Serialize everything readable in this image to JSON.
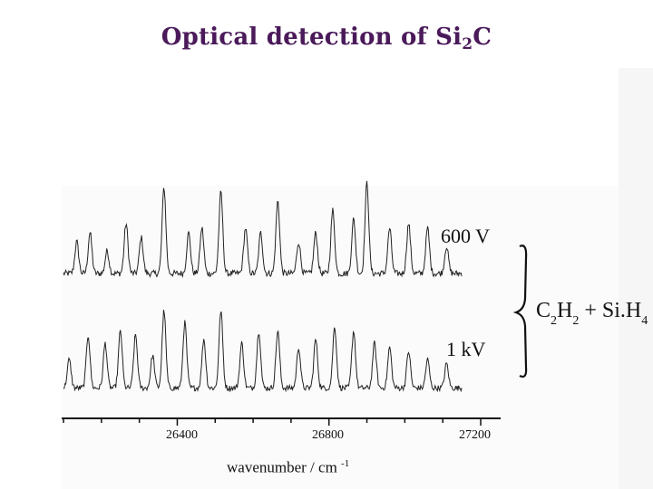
{
  "title": {
    "text": "Optical detection of Si",
    "sub": "2",
    "tail": "C"
  },
  "chart_data": {
    "type": "line",
    "xlabel": "wavenumber / cm",
    "xlabel_sup": "-1",
    "ylabel": "",
    "xlim": [
      26100,
      27200
    ],
    "x_ticks": [
      26400,
      26800,
      27200
    ],
    "x_tick_labels": [
      "26400",
      "26800",
      "27200"
    ],
    "grid": false,
    "series": [
      {
        "name": "600 V",
        "baseline": 0.2,
        "noise": 0.035,
        "peaks": [
          {
            "x": 26135,
            "a": 0.35
          },
          {
            "x": 26170,
            "a": 0.45
          },
          {
            "x": 26215,
            "a": 0.25
          },
          {
            "x": 26265,
            "a": 0.55
          },
          {
            "x": 26305,
            "a": 0.4
          },
          {
            "x": 26365,
            "a": 0.95
          },
          {
            "x": 26430,
            "a": 0.45
          },
          {
            "x": 26465,
            "a": 0.5
          },
          {
            "x": 26515,
            "a": 0.9
          },
          {
            "x": 26580,
            "a": 0.5
          },
          {
            "x": 26620,
            "a": 0.45
          },
          {
            "x": 26665,
            "a": 0.8
          },
          {
            "x": 26720,
            "a": 0.35
          },
          {
            "x": 26765,
            "a": 0.45
          },
          {
            "x": 26810,
            "a": 0.7
          },
          {
            "x": 26865,
            "a": 0.6
          },
          {
            "x": 26900,
            "a": 1.0
          },
          {
            "x": 26960,
            "a": 0.5
          },
          {
            "x": 27010,
            "a": 0.55
          },
          {
            "x": 27060,
            "a": 0.5
          },
          {
            "x": 27110,
            "a": 0.3
          },
          {
            "x": 27165,
            "a": 0.15
          }
        ]
      },
      {
        "name": "1 kV",
        "baseline": 0.15,
        "noise": 0.035,
        "peaks": [
          {
            "x": 26115,
            "a": 0.35
          },
          {
            "x": 26165,
            "a": 0.65
          },
          {
            "x": 26210,
            "a": 0.55
          },
          {
            "x": 26250,
            "a": 0.7
          },
          {
            "x": 26290,
            "a": 0.65
          },
          {
            "x": 26335,
            "a": 0.4
          },
          {
            "x": 26365,
            "a": 0.95
          },
          {
            "x": 26420,
            "a": 0.8
          },
          {
            "x": 26470,
            "a": 0.6
          },
          {
            "x": 26515,
            "a": 0.95
          },
          {
            "x": 26570,
            "a": 0.55
          },
          {
            "x": 26615,
            "a": 0.7
          },
          {
            "x": 26665,
            "a": 0.7
          },
          {
            "x": 26720,
            "a": 0.5
          },
          {
            "x": 26765,
            "a": 0.6
          },
          {
            "x": 26815,
            "a": 0.75
          },
          {
            "x": 26865,
            "a": 0.7
          },
          {
            "x": 26920,
            "a": 0.55
          },
          {
            "x": 26960,
            "a": 0.5
          },
          {
            "x": 27010,
            "a": 0.45
          },
          {
            "x": 27060,
            "a": 0.35
          },
          {
            "x": 27110,
            "a": 0.3
          },
          {
            "x": 27165,
            "a": 0.1
          }
        ]
      }
    ],
    "annotation": {
      "species": [
        "C",
        "2",
        "H",
        "2",
        " + Si.H",
        "4"
      ]
    }
  }
}
